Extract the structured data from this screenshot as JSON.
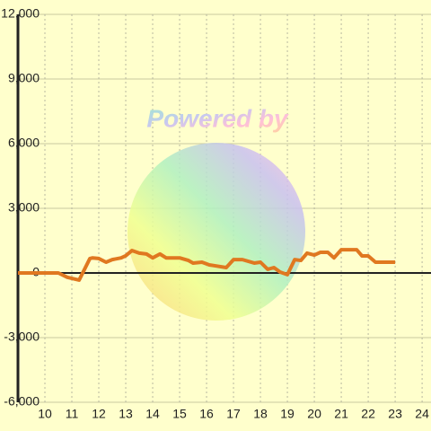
{
  "chart_data": {
    "type": "line",
    "watermark": "Powered by",
    "x": [
      9.0,
      10.5,
      10.83,
      11.27,
      11.67,
      11.77,
      12.0,
      12.27,
      12.5,
      12.83,
      13.0,
      13.23,
      13.5,
      13.77,
      14.0,
      14.27,
      14.5,
      15.0,
      15.33,
      15.5,
      15.83,
      16.1,
      16.33,
      16.73,
      17.0,
      17.33,
      17.77,
      18.0,
      18.27,
      18.5,
      18.73,
      19.0,
      19.27,
      19.5,
      19.73,
      20.0,
      20.23,
      20.5,
      20.73,
      21.0,
      21.57,
      21.77,
      22.0,
      22.27,
      23.0
    ],
    "series": [
      {
        "color": "#e07820",
        "values": [
          0,
          0,
          -200,
          -330,
          670,
          700,
          670,
          500,
          620,
          700,
          800,
          1040,
          920,
          880,
          700,
          880,
          700,
          700,
          580,
          460,
          500,
          375,
          330,
          250,
          620,
          620,
          460,
          500,
          170,
          250,
          40,
          -80,
          620,
          580,
          920,
          830,
          960,
          960,
          700,
          1080,
          1080,
          790,
          790,
          500,
          500
        ]
      }
    ],
    "xlim": [
      9,
      24.33
    ],
    "xticks": [
      10,
      11,
      12,
      13,
      14,
      15,
      16,
      17,
      18,
      19,
      20,
      21,
      22,
      23,
      24
    ],
    "ylim": [
      -6000,
      12000
    ],
    "yticks": [
      {
        "value": -6000,
        "label": "-6,000"
      },
      {
        "value": -3000,
        "label": "-3,000"
      },
      0,
      {
        "value": 3000,
        "label": "3,000"
      },
      {
        "value": 6000,
        "label": "6,000"
      },
      {
        "value": 9000,
        "label": "9,000"
      },
      {
        "value": 12000,
        "label": "12,000"
      }
    ],
    "grid": true
  }
}
